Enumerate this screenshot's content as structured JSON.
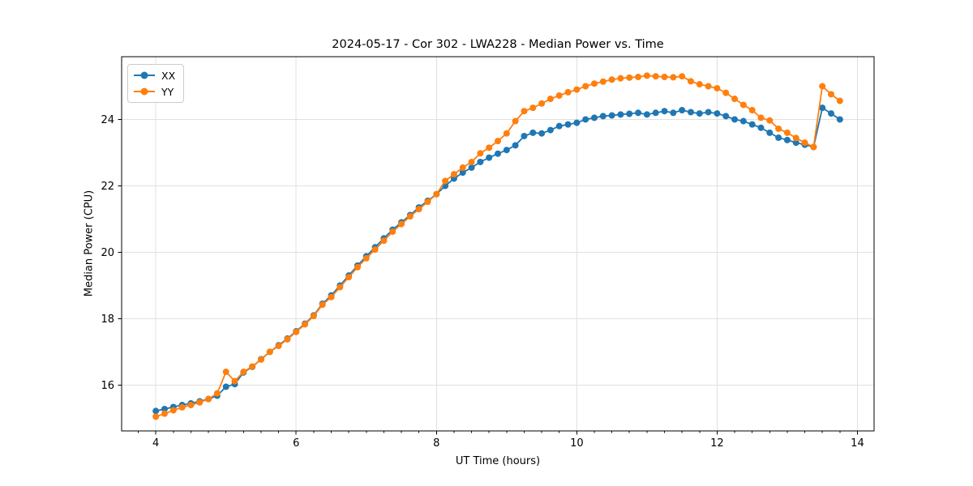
{
  "chart_data": {
    "type": "line",
    "title": "2024-05-17 - Cor 302 - LWA228 - Median Power vs. Time",
    "xlabel": "UT Time (hours)",
    "ylabel": "Median Power (CPU)",
    "xlim": [
      3.5125,
      14.2375
    ],
    "ylim": [
      14.62,
      25.89
    ],
    "xticks": [
      4,
      6,
      8,
      10,
      12,
      14
    ],
    "yticks": [
      16,
      18,
      20,
      22,
      24
    ],
    "x_minor_step": 0.25,
    "grid": true,
    "legend_position": "upper-left",
    "style": {
      "grid_color": "#e0e0e0",
      "spine_color": "#000000",
      "background": "#ffffff",
      "marker": "circle",
      "marker_radius": 4,
      "line_width": 1.8
    },
    "x": [
      4.0,
      4.125,
      4.25,
      4.375,
      4.5,
      4.625,
      4.75,
      4.875,
      5.0,
      5.125,
      5.25,
      5.375,
      5.5,
      5.625,
      5.75,
      5.875,
      6.0,
      6.125,
      6.25,
      6.375,
      6.5,
      6.625,
      6.75,
      6.875,
      7.0,
      7.125,
      7.25,
      7.375,
      7.5,
      7.625,
      7.75,
      7.875,
      8.0,
      8.125,
      8.25,
      8.375,
      8.5,
      8.625,
      8.75,
      8.875,
      9.0,
      9.125,
      9.25,
      9.375,
      9.5,
      9.625,
      9.75,
      9.875,
      10.0,
      10.125,
      10.25,
      10.375,
      10.5,
      10.625,
      10.75,
      10.875,
      11.0,
      11.125,
      11.25,
      11.375,
      11.5,
      11.625,
      11.75,
      11.875,
      12.0,
      12.125,
      12.25,
      12.375,
      12.5,
      12.625,
      12.75,
      12.875,
      13.0,
      13.125,
      13.25,
      13.375,
      13.5,
      13.625,
      13.75
    ],
    "series": [
      {
        "name": "XX",
        "color": "#1f77b4",
        "values": [
          15.22,
          15.28,
          15.34,
          15.4,
          15.45,
          15.51,
          15.58,
          15.68,
          15.95,
          16.03,
          16.38,
          16.55,
          16.78,
          17.0,
          17.2,
          17.4,
          17.62,
          17.85,
          18.1,
          18.45,
          18.7,
          19.0,
          19.3,
          19.6,
          19.88,
          20.15,
          20.42,
          20.68,
          20.9,
          21.12,
          21.35,
          21.55,
          21.75,
          22.0,
          22.22,
          22.4,
          22.55,
          22.72,
          22.85,
          22.97,
          23.08,
          23.22,
          23.5,
          23.6,
          23.58,
          23.68,
          23.8,
          23.85,
          23.9,
          24.0,
          24.05,
          24.1,
          24.12,
          24.15,
          24.17,
          24.2,
          24.15,
          24.2,
          24.25,
          24.2,
          24.28,
          24.22,
          24.18,
          24.22,
          24.18,
          24.1,
          24.0,
          23.95,
          23.85,
          23.75,
          23.6,
          23.45,
          23.38,
          23.3,
          23.24,
          23.17,
          24.35,
          24.18,
          24.0
        ]
      },
      {
        "name": "YY",
        "color": "#ff7f0e",
        "values": [
          15.05,
          15.14,
          15.24,
          15.33,
          15.4,
          15.48,
          15.58,
          15.75,
          16.4,
          16.12,
          16.4,
          16.56,
          16.77,
          17.0,
          17.18,
          17.38,
          17.6,
          17.83,
          18.08,
          18.42,
          18.65,
          18.95,
          19.25,
          19.55,
          19.82,
          20.08,
          20.35,
          20.62,
          20.85,
          21.08,
          21.3,
          21.52,
          21.75,
          22.15,
          22.35,
          22.55,
          22.72,
          22.98,
          23.15,
          23.35,
          23.58,
          23.95,
          24.25,
          24.35,
          24.48,
          24.62,
          24.72,
          24.82,
          24.9,
          25.0,
          25.08,
          25.14,
          25.2,
          25.24,
          25.26,
          25.28,
          25.32,
          25.3,
          25.28,
          25.27,
          25.3,
          25.15,
          25.06,
          25.0,
          24.94,
          24.8,
          24.62,
          24.44,
          24.28,
          24.05,
          23.97,
          23.72,
          23.6,
          23.44,
          23.3,
          23.17,
          25.0,
          24.76,
          24.56
        ]
      }
    ]
  }
}
